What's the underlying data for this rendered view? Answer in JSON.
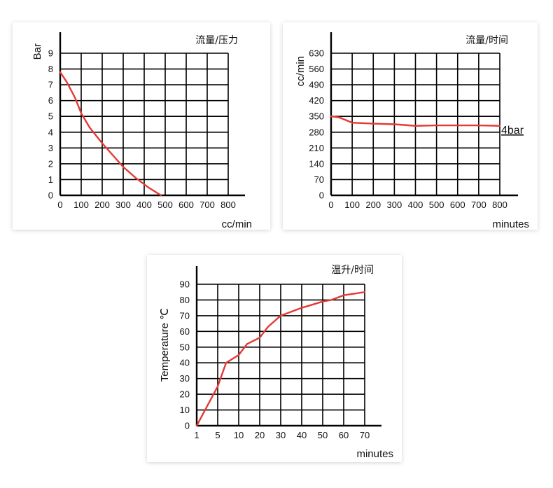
{
  "chart_data": [
    {
      "type": "line",
      "title": "流量/压力",
      "xlabel": "cc/min",
      "ylabel": "Bar",
      "x_ticks": [
        "0",
        "100",
        "200",
        "300",
        "400",
        "500",
        "600",
        "700",
        "800"
      ],
      "y_ticks": [
        "0",
        "1",
        "2",
        "3",
        "4",
        "5",
        "6",
        "7",
        "8",
        "9"
      ],
      "xlim": [
        0,
        800
      ],
      "ylim": [
        0,
        9
      ],
      "grid": true,
      "line_color": "#e53935",
      "series": [
        {
          "x": [
            0,
            30,
            70,
            100,
            140,
            200,
            260,
            300,
            360,
            420,
            480
          ],
          "y": [
            7.8,
            7.2,
            6.2,
            5.2,
            4.3,
            3.3,
            2.4,
            1.8,
            1.1,
            0.5,
            0
          ]
        }
      ]
    },
    {
      "type": "line",
      "title": "流量/时间",
      "xlabel": "minutes",
      "ylabel": "cc/min",
      "x_ticks": [
        "0",
        "100",
        "200",
        "300",
        "400",
        "500",
        "600",
        "700",
        "800"
      ],
      "y_ticks": [
        "0",
        "70",
        "140",
        "210",
        "280",
        "350",
        "420",
        "490",
        "560",
        "630"
      ],
      "xlim": [
        0,
        800
      ],
      "ylim": [
        0,
        630
      ],
      "grid": true,
      "line_color": "#e53935",
      "series": [
        {
          "x": [
            0,
            40,
            100,
            200,
            300,
            400,
            500,
            600,
            700,
            800
          ],
          "y": [
            350,
            345,
            322,
            318,
            315,
            308,
            310,
            310,
            310,
            308
          ]
        }
      ],
      "annotation": "4bar"
    },
    {
      "type": "line",
      "title": "温升/时间",
      "xlabel": "minutes",
      "ylabel": "Temperature ℃",
      "x_ticks": [
        "1",
        "5",
        "10",
        "20",
        "30",
        "40",
        "50",
        "60",
        "70"
      ],
      "y_ticks": [
        "0",
        "10",
        "20",
        "30",
        "40",
        "50",
        "60",
        "70",
        "80",
        "90"
      ],
      "xlim": [
        0,
        80
      ],
      "ylim": [
        0,
        90
      ],
      "grid": true,
      "line_color": "#e53935",
      "series": [
        {
          "x": [
            0,
            4,
            10,
            14,
            20,
            24,
            30,
            34,
            40,
            50,
            60,
            64,
            70,
            80
          ],
          "y": [
            0,
            10,
            25,
            40,
            45,
            52,
            56,
            63,
            70,
            75,
            79,
            80,
            83,
            85
          ]
        }
      ]
    }
  ]
}
